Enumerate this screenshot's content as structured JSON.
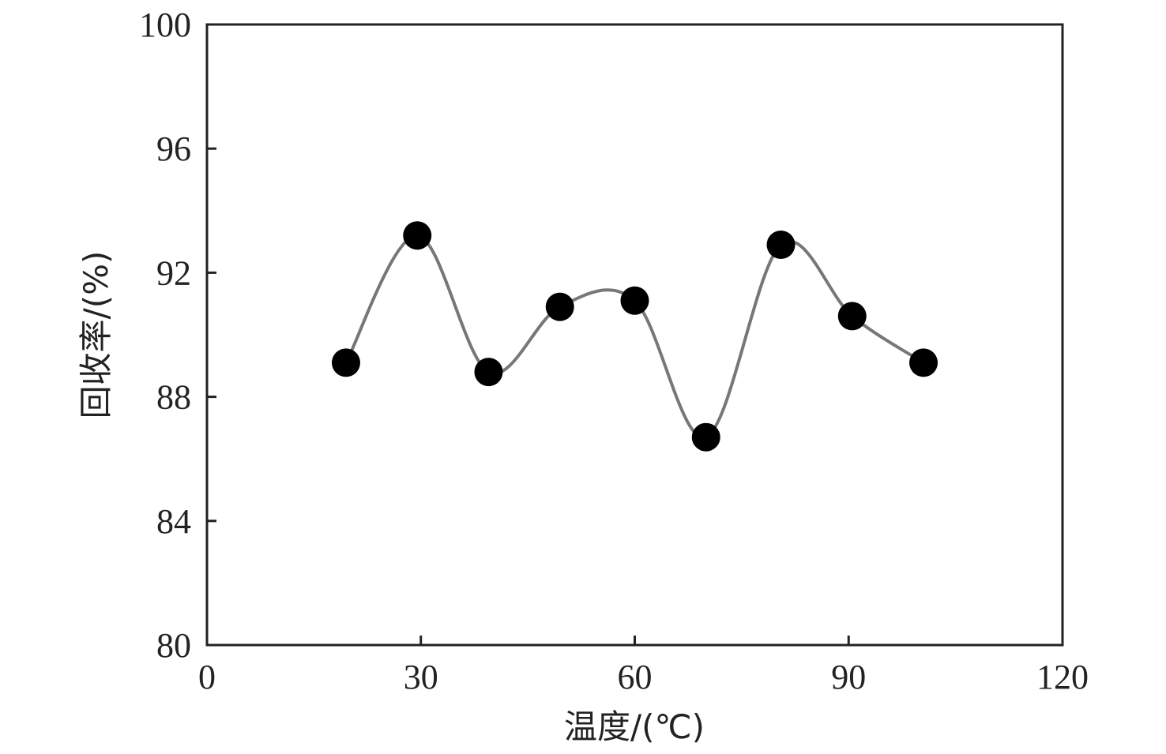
{
  "chart_data": {
    "type": "line",
    "title": "",
    "xlabel": "温度/(℃)",
    "ylabel": "回收率/(%)",
    "xlim": [
      0,
      120
    ],
    "ylim": [
      80,
      100
    ],
    "xticks": [
      0,
      30,
      60,
      90,
      120
    ],
    "yticks": [
      80,
      84,
      88,
      92,
      96,
      100
    ],
    "grid": false,
    "legend": "none",
    "smooth": true,
    "colors": {
      "line": "#777777",
      "marker": "#000000",
      "axis": "#222222"
    },
    "series": [
      {
        "x": [
          19.5,
          29.5,
          39.5,
          49.5,
          60,
          70,
          80.5,
          90.5,
          100.5
        ],
        "y": [
          89.1,
          93.2,
          88.8,
          90.9,
          91.1,
          86.7,
          92.9,
          90.6,
          89.1
        ]
      }
    ]
  }
}
